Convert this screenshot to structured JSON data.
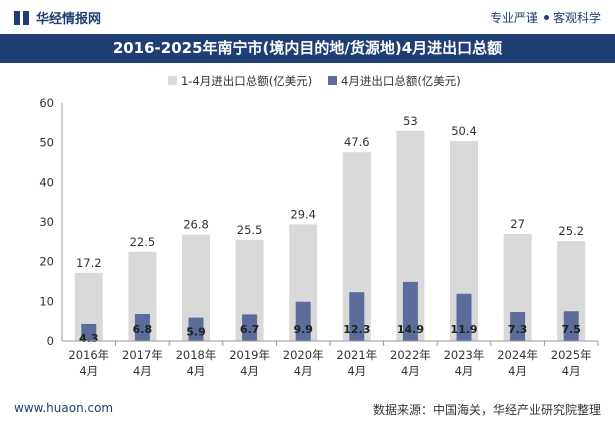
{
  "header": {
    "brand": "华经情报网",
    "tagline_left": "专业严谨",
    "tagline_right": "客观科学"
  },
  "title": "2016-2025年南宁市(境内目的地/货源地)4月进出口总额",
  "footer": {
    "url": "www.huaon.com",
    "source": "数据来源：中国海关，华经产业研究院整理"
  },
  "colors": {
    "brand": "#1f3f74",
    "series_total": "#d9d9d9",
    "series_april": "#5b6b9a"
  },
  "chart_data": {
    "type": "bar",
    "categories": [
      "2016年\n4月",
      "2017年\n4月",
      "2018年\n4月",
      "2019年\n4月",
      "2020年\n4月",
      "2021年\n4月",
      "2022年\n4月",
      "2023年\n4月",
      "2024年\n4月",
      "2025年\n4月"
    ],
    "series": [
      {
        "name": "1-4月进出口总额(亿美元)",
        "values": [
          17.2,
          22.5,
          26.8,
          25.5,
          29.4,
          47.6,
          53,
          50.4,
          27,
          25.2
        ]
      },
      {
        "name": "4月进出口总额(亿美元)",
        "values": [
          4.3,
          6.8,
          5.9,
          6.7,
          9.9,
          12.3,
          14.9,
          11.9,
          7.3,
          7.5
        ]
      }
    ],
    "ylim": [
      0,
      60
    ],
    "yticks": [
      0,
      10,
      20,
      30,
      40,
      50,
      60
    ],
    "legend": "top-center",
    "grid": false
  }
}
